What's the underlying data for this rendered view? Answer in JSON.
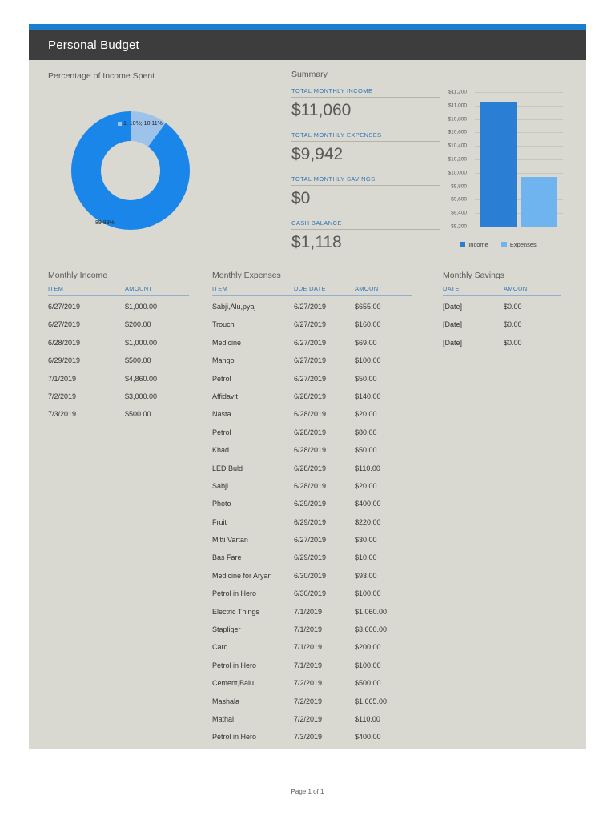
{
  "page": {
    "title": "Personal Budget",
    "footer": "Page 1 of 1"
  },
  "colors": {
    "accent_strip": "#1b7fd0",
    "header_bar": "#3d3d3d",
    "content_bg": "#d9d8d1",
    "label_blue": "#2e75b6",
    "pie_main": "#1b86ea",
    "pie_small": "#9dc3ea",
    "income_bar": "#2a7fd4",
    "expenses_bar": "#6fb3ef"
  },
  "pie_section": {
    "title": "Percentage of Income Spent",
    "labels": {
      "small": "1; 10%; 10.11%",
      "large": "89.89%"
    }
  },
  "summary": {
    "title": "Summary",
    "items": [
      {
        "label": "TOTAL MONTHLY INCOME",
        "value": "$11,060"
      },
      {
        "label": "TOTAL MONTHLY EXPENSES",
        "value": "$9,942"
      },
      {
        "label": "TOTAL MONTHLY SAVINGS",
        "value": "$0"
      },
      {
        "label": "CASH BALANCE",
        "value": "$1,118"
      }
    ]
  },
  "chart_data": [
    {
      "type": "pie",
      "title": "Percentage of Income Spent",
      "donut": true,
      "slices": [
        {
          "label": "1; 10%; 10.11%",
          "value": 10.11,
          "color": "#9dc3ea"
        },
        {
          "label": "89.89%",
          "value": 89.89,
          "color": "#1b86ea"
        }
      ]
    },
    {
      "type": "bar",
      "categories": [
        "Income",
        "Expenses"
      ],
      "values": [
        11060,
        9942
      ],
      "colors": [
        "#2a7fd4",
        "#6fb3ef"
      ],
      "ylim": [
        9200,
        11200
      ],
      "ytick_step": 200,
      "tick_labels": [
        "$11,200",
        "$11,000",
        "$10,800",
        "$10,600",
        "$10,400",
        "$10,200",
        "$10,000",
        "$9,800",
        "$9,600",
        "$9,400",
        "$9,200"
      ],
      "legend": [
        "Income",
        "Expenses"
      ],
      "legend_position": "bottom",
      "grid": true
    }
  ],
  "income": {
    "title": "Monthly Income",
    "headers": [
      "ITEM",
      "AMOUNT"
    ],
    "rows": [
      {
        "item": "6/27/2019",
        "amount": "$1,000.00"
      },
      {
        "item": "6/27/2019",
        "amount": "$200.00"
      },
      {
        "item": "6/28/2019",
        "amount": "$1,000.00"
      },
      {
        "item": "6/29/2019",
        "amount": "$500.00"
      },
      {
        "item": "7/1/2019",
        "amount": "$4,860.00"
      },
      {
        "item": "7/2/2019",
        "amount": "$3,000.00"
      },
      {
        "item": "7/3/2019",
        "amount": "$500.00"
      }
    ]
  },
  "expenses": {
    "title": "Monthly Expenses",
    "headers": [
      "ITEM",
      "DUE DATE",
      "AMOUNT"
    ],
    "rows": [
      {
        "item": "Sabji,Alu,pyaj",
        "due": "6/27/2019",
        "amount": "$655.00"
      },
      {
        "item": "Trouch",
        "due": "6/27/2019",
        "amount": "$160.00"
      },
      {
        "item": "Medicine",
        "due": "6/27/2019",
        "amount": "$69.00"
      },
      {
        "item": "Mango",
        "due": "6/27/2019",
        "amount": "$100.00"
      },
      {
        "item": "Petrol",
        "due": "6/27/2019",
        "amount": "$50.00"
      },
      {
        "item": "Affidavit",
        "due": "6/28/2019",
        "amount": "$140.00"
      },
      {
        "item": "Nasta",
        "due": "6/28/2019",
        "amount": "$20.00"
      },
      {
        "item": "Petrol",
        "due": "6/28/2019",
        "amount": "$80.00"
      },
      {
        "item": "Khad",
        "due": "6/28/2019",
        "amount": "$50.00"
      },
      {
        "item": "LED Buld",
        "due": "6/28/2019",
        "amount": "$110.00"
      },
      {
        "item": "Sabji",
        "due": "6/28/2019",
        "amount": "$20.00"
      },
      {
        "item": "Photo",
        "due": "6/29/2019",
        "amount": "$400.00"
      },
      {
        "item": "Fruit",
        "due": "6/29/2019",
        "amount": "$220.00"
      },
      {
        "item": "Mitti Vartan",
        "due": "6/27/2019",
        "amount": "$30.00"
      },
      {
        "item": "Bas Fare",
        "due": "6/29/2019",
        "amount": "$10.00"
      },
      {
        "item": "Medicine for Aryan",
        "due": "6/30/2019",
        "amount": "$93.00"
      },
      {
        "item": "Petrol in Hero",
        "due": "6/30/2019",
        "amount": "$100.00"
      },
      {
        "item": "Electric Things",
        "due": "7/1/2019",
        "amount": "$1,060.00"
      },
      {
        "item": "Stapliger",
        "due": "7/1/2019",
        "amount": "$3,600.00"
      },
      {
        "item": "Card",
        "due": "7/1/2019",
        "amount": "$200.00"
      },
      {
        "item": "Petrol in Hero",
        "due": "7/1/2019",
        "amount": "$100.00"
      },
      {
        "item": "Cement,Balu",
        "due": "7/2/2019",
        "amount": "$500.00"
      },
      {
        "item": "Mashala",
        "due": "7/2/2019",
        "amount": "$1,665.00"
      },
      {
        "item": "Mathai",
        "due": "7/2/2019",
        "amount": "$110.00"
      },
      {
        "item": "Petrol in Hero",
        "due": "7/3/2019",
        "amount": "$400.00"
      }
    ]
  },
  "savings": {
    "title": "Monthly Savings",
    "headers": [
      "DATE",
      "AMOUNT"
    ],
    "rows": [
      {
        "date": "[Date]",
        "amount": "$0.00"
      },
      {
        "date": "[Date]",
        "amount": "$0.00"
      },
      {
        "date": "[Date]",
        "amount": "$0.00"
      }
    ]
  }
}
